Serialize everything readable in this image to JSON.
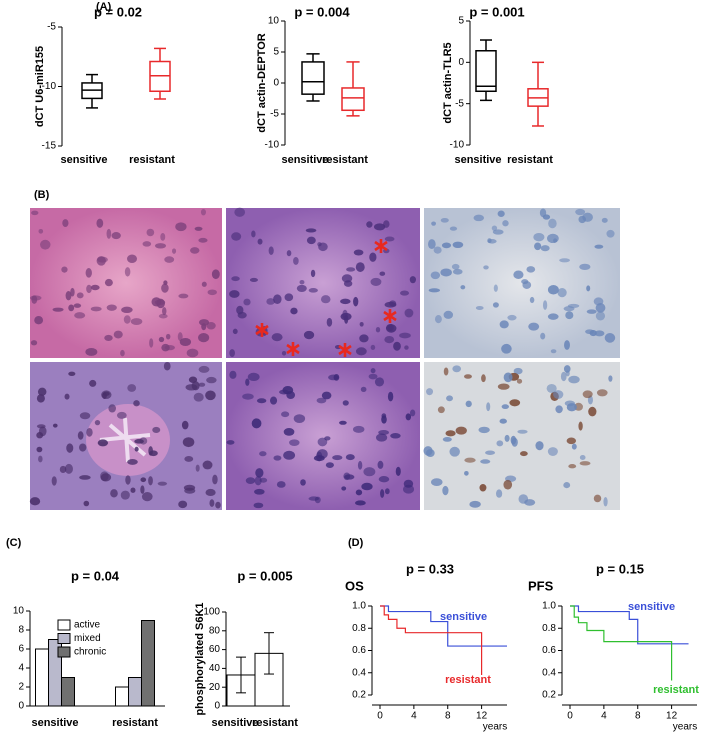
{
  "panel_labels": [
    "(A)",
    "(B)",
    "(C)",
    "(D)"
  ],
  "chart_data": [
    {
      "type": "box",
      "title": "p = 0.02",
      "ylabel": "dCT U6-miR155",
      "categories": [
        "sensitive",
        "resistant"
      ],
      "boxes": [
        {
          "whisker_low": -11.8,
          "q1": -11.0,
          "median": -10.3,
          "q3": -9.7,
          "whisker_high": -9.0,
          "color": "#000000"
        },
        {
          "whisker_low": -11.05,
          "q1": -10.4,
          "median": -9.1,
          "q3": -7.9,
          "whisker_high": -6.8,
          "color": "#e8292b"
        }
      ],
      "ylim": [
        -15,
        -5
      ],
      "yticks": [
        -15,
        -10,
        -5
      ]
    },
    {
      "type": "box",
      "title": "p = 0.004",
      "ylabel": "dCT actin-DEPTOR",
      "categories": [
        "sensitive",
        "resistant"
      ],
      "boxes": [
        {
          "whisker_low": -2.9,
          "q1": -1.8,
          "median": 0.2,
          "q3": 3.4,
          "whisker_high": 4.7,
          "color": "#000000"
        },
        {
          "whisker_low": -5.3,
          "q1": -4.4,
          "median": -2.4,
          "q3": -0.8,
          "whisker_high": 3.4,
          "color": "#e8292b"
        }
      ],
      "ylim": [
        -10,
        10
      ],
      "yticks": [
        -10,
        -5,
        0,
        5,
        10
      ]
    },
    {
      "type": "box",
      "title": "p = 0.001",
      "ylabel": "dCT actin-TLR5",
      "categories": [
        "sensitive",
        "resistant"
      ],
      "boxes": [
        {
          "whisker_low": -4.6,
          "q1": -3.5,
          "median": -2.9,
          "q3": 1.4,
          "whisker_high": 2.7,
          "color": "#000000"
        },
        {
          "whisker_low": -7.7,
          "q1": -5.3,
          "median": -4.3,
          "q3": -3.2,
          "whisker_high": 0,
          "color": "#e8292b"
        }
      ],
      "ylim": [
        -10,
        5
      ],
      "yticks": [
        -10,
        -5,
        0,
        5
      ]
    },
    {
      "type": "bar",
      "title": "p = 0.04",
      "categories": [
        "sensitive",
        "resistant"
      ],
      "series": [
        {
          "name": "active",
          "color": "#ffffff",
          "values": [
            6,
            2
          ]
        },
        {
          "name": "mixed",
          "color": "#b9b9cc",
          "values": [
            7,
            3
          ]
        },
        {
          "name": "chronic",
          "color": "#707070",
          "values": [
            3,
            9
          ]
        }
      ],
      "ylim": [
        0,
        10
      ],
      "yticks": [
        0,
        2,
        4,
        6,
        8,
        10
      ],
      "legend": "upper-left"
    },
    {
      "type": "errorbar",
      "title": "p = 0.005",
      "ylabel": "phosphorylated S6K1",
      "categories": [
        "sensitive",
        "resistant"
      ],
      "values": [
        33,
        56
      ],
      "errors": [
        19,
        22
      ],
      "color": "#ffffff",
      "ylim": [
        0,
        100
      ],
      "yticks": [
        0,
        20,
        40,
        60,
        80,
        100
      ]
    },
    {
      "type": "step",
      "title": "p = 0.33",
      "label": "OS",
      "xlabel": "years",
      "series": [
        {
          "name": "sensitive",
          "color": "#3a4fd8",
          "x": [
            0,
            1,
            6,
            8,
            15
          ],
          "values": [
            1.0,
            0.95,
            0.86,
            0.64,
            0.64
          ]
        },
        {
          "name": "resistant",
          "color": "#e8292b",
          "x": [
            0,
            0.5,
            1,
            2,
            3,
            12
          ],
          "values": [
            1.0,
            0.92,
            0.88,
            0.8,
            0.76,
            0.38
          ]
        }
      ],
      "xlim": [
        0,
        15
      ],
      "xticks": [
        0,
        4,
        8,
        12
      ],
      "ylim": [
        0.2,
        1.0
      ],
      "yticks": [
        0.2,
        0.4,
        0.6,
        0.8,
        {
          "value": 1.0,
          "label": "1.0"
        }
      ]
    },
    {
      "type": "step",
      "title": "p = 0.15",
      "label": "PFS",
      "xlabel": "years",
      "series": [
        {
          "name": "sensitive",
          "color": "#3a4fd8",
          "x": [
            0,
            1,
            7,
            8,
            14
          ],
          "values": [
            1.0,
            0.95,
            0.88,
            0.66,
            0.66
          ]
        },
        {
          "name": "resistant",
          "color": "#2fbf2f",
          "x": [
            0,
            0.5,
            1,
            2,
            4,
            12
          ],
          "values": [
            1.0,
            0.9,
            0.85,
            0.78,
            0.68,
            0.33
          ]
        }
      ],
      "xlim": [
        0,
        15
      ],
      "xticks": [
        0,
        4,
        8,
        12
      ],
      "ylim": [
        0.2,
        1.0
      ],
      "yticks": [
        0.2,
        0.4,
        0.6,
        0.8,
        {
          "value": 1.0,
          "label": "1.0"
        }
      ]
    }
  ]
}
